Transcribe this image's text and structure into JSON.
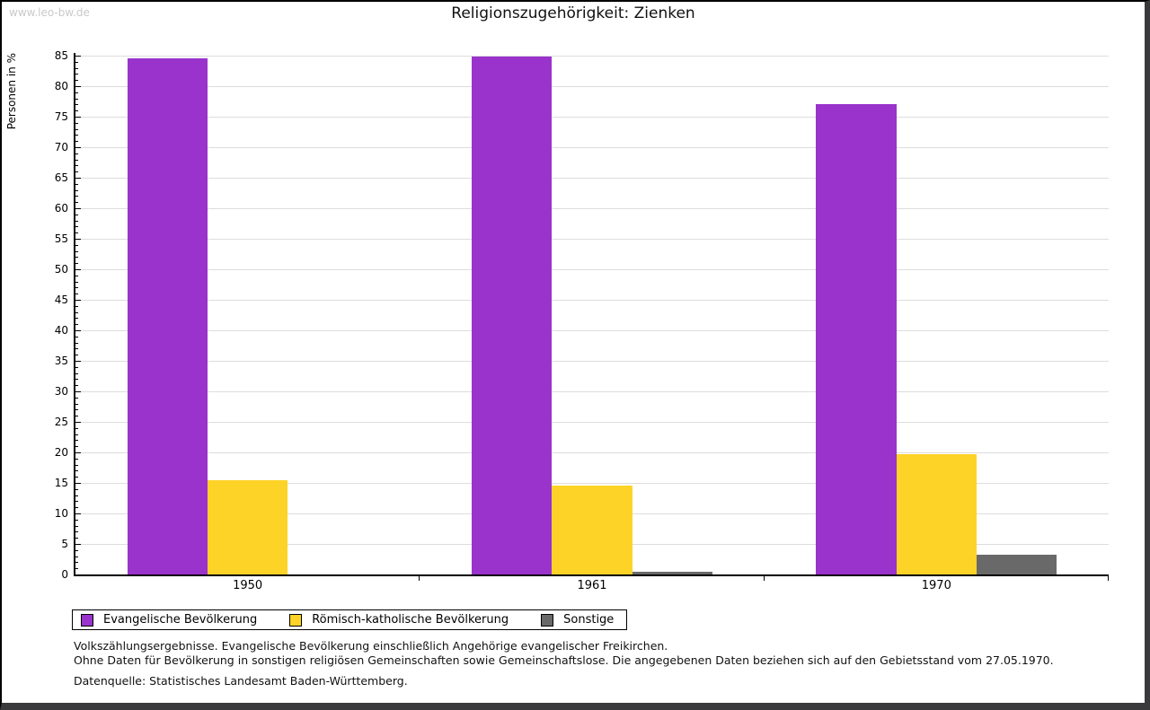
{
  "page": {
    "watermark": "www.leo-bw.de"
  },
  "chart_data": {
    "type": "bar",
    "title": "Religionszugehörigkeit: Zienken",
    "ylabel": "Personen in %",
    "xlabel": "",
    "categories": [
      "1950",
      "1961",
      "1970"
    ],
    "series": [
      {
        "name": "Evangelische Bevölkerung",
        "color": "#9933CC",
        "values": [
          84.5,
          84.8,
          77.1
        ]
      },
      {
        "name": "Römisch-katholische Bevölkerung",
        "color": "#FDD327",
        "values": [
          15.5,
          14.5,
          19.7
        ]
      },
      {
        "name": "Sonstige",
        "color": "#696969",
        "values": [
          0,
          0.5,
          3.2
        ]
      }
    ],
    "ylim": [
      0,
      85
    ],
    "ytick_step": 5,
    "minor_tick_step": 1,
    "grid": "horizontal-major",
    "gridline_color": "#dddddd",
    "legend_position": "bottom-left"
  },
  "footnotes": {
    "line1": "Volkszählungsergebnisse. Evangelische Bevölkerung einschließlich Angehörige evangelischer Freikirchen.",
    "line2": "Ohne Daten für Bevölkerung in sonstigen religiösen Gemeinschaften sowie Gemeinschaftslose. Die angegebenen Daten beziehen sich auf den Gebietsstand vom 27.05.1970.",
    "source": "Datenquelle: Statistisches Landesamt Baden-Württemberg."
  }
}
